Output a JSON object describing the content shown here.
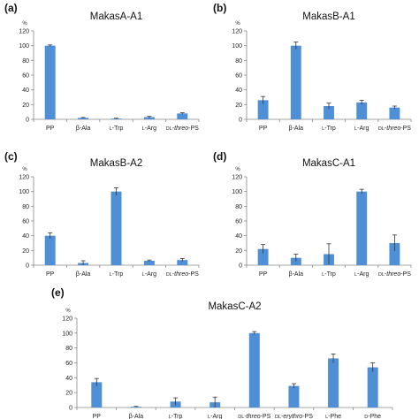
{
  "figure": {
    "ylabel_unit": "%"
  },
  "chart_data": [
    {
      "panel": "(a)",
      "title": "MakasA-A1",
      "type": "bar",
      "categories": [
        "PP",
        "β-Ala",
        "L-Trp",
        "L-Arg",
        "DL-threo-PS"
      ],
      "values": [
        100,
        2,
        1,
        3,
        8
      ],
      "errors": [
        1,
        0.5,
        0.5,
        1,
        1
      ],
      "ylim": [
        0,
        120
      ],
      "yticks": [
        0,
        20,
        40,
        60,
        80,
        100,
        120
      ],
      "color": "#4f8fd6"
    },
    {
      "panel": "(b)",
      "title": "MakasB-A1",
      "type": "bar",
      "categories": [
        "PP",
        "β-Ala",
        "L-Trp",
        "L-Arg",
        "DL-threo-PS"
      ],
      "values": [
        26,
        100,
        18,
        23,
        16
      ],
      "errors": [
        5,
        5,
        4,
        3,
        2
      ],
      "ylim": [
        0,
        120
      ],
      "yticks": [
        0,
        20,
        40,
        60,
        80,
        100,
        120
      ],
      "color": "#4f8fd6"
    },
    {
      "panel": "(c)",
      "title": "MakasB-A2",
      "type": "bar",
      "categories": [
        "PP",
        "β-Ala",
        "L-Trp",
        "L-Arg",
        "DL-threo-PS"
      ],
      "values": [
        40,
        3,
        100,
        6,
        7
      ],
      "errors": [
        4,
        3,
        5,
        1,
        2
      ],
      "ylim": [
        0,
        120
      ],
      "yticks": [
        0,
        20,
        40,
        60,
        80,
        100,
        120
      ],
      "color": "#4f8fd6"
    },
    {
      "panel": "(d)",
      "title": "MakasC-A1",
      "type": "bar",
      "categories": [
        "PP",
        "β-Ala",
        "L-Trp",
        "L-Arg",
        "DL-threo-PS"
      ],
      "values": [
        22,
        10,
        15,
        100,
        30
      ],
      "errors": [
        6,
        5,
        14,
        3,
        11
      ],
      "ylim": [
        0,
        120
      ],
      "yticks": [
        0,
        20,
        40,
        60,
        80,
        100,
        120
      ],
      "color": "#4f8fd6"
    },
    {
      "panel": "(e)",
      "title": "MakasC-A2",
      "type": "bar",
      "categories": [
        "PP",
        "β-Ala",
        "L-Trp",
        "L-Arg",
        "DL-threo-PS",
        "DL-erythro-PS",
        "L-Phe",
        "D-Phe"
      ],
      "values": [
        34,
        1,
        8,
        7,
        100,
        29,
        66,
        54
      ],
      "errors": [
        5,
        0.5,
        5,
        7,
        2,
        3,
        6,
        6
      ],
      "ylim": [
        0,
        120
      ],
      "yticks": [
        0,
        20,
        40,
        60,
        80,
        100,
        120
      ],
      "color": "#4f8fd6"
    }
  ]
}
